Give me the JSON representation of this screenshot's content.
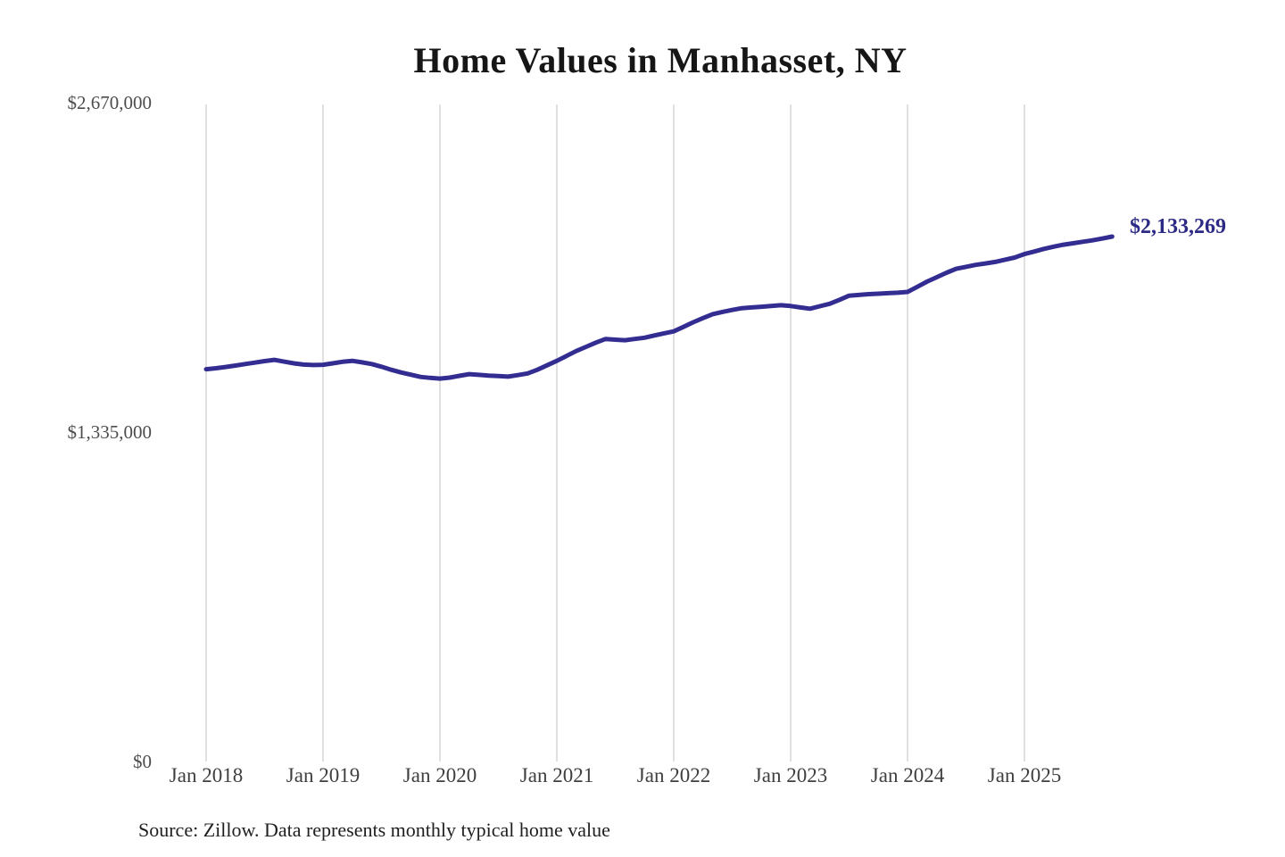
{
  "chart": {
    "title": "Home Values in Manhasset, NY",
    "end_label": "$2,133,269",
    "source": "Source: Zillow. Data represents monthly typical home value",
    "y_ticks": [
      {
        "label": "$2,670,000",
        "value": 2670000
      },
      {
        "label": "$1,335,000",
        "value": 1335000
      },
      {
        "label": "$0",
        "value": 0
      }
    ]
  },
  "chart_data": {
    "type": "line",
    "title": "Home Values in Manhasset, NY",
    "series_name": "Monthly typical home value (Zillow)",
    "frequency": "monthly",
    "x_start": "Jan 2018",
    "x_end": "Oct 2025",
    "ylim": [
      0,
      2670000
    ],
    "grid": "vertical-only",
    "legend": "none",
    "line_color": "#342d91",
    "grid_color": "#cccccc",
    "last_value": 2133269,
    "last_value_label": "$2,133,269",
    "x_ticks": [
      {
        "label": "Jan 2018",
        "month": 0
      },
      {
        "label": "Jan 2019",
        "month": 12
      },
      {
        "label": "Jan 2020",
        "month": 24
      },
      {
        "label": "Jan 2021",
        "month": 36
      },
      {
        "label": "Jan 2022",
        "month": 48
      },
      {
        "label": "Jan 2023",
        "month": 60
      },
      {
        "label": "Jan 2024",
        "month": 72
      },
      {
        "label": "Jan 2025",
        "month": 84
      }
    ],
    "values": [
      1594000,
      1598000,
      1603000,
      1609000,
      1615000,
      1621000,
      1627000,
      1632000,
      1625000,
      1618000,
      1613000,
      1611000,
      1612000,
      1618000,
      1624000,
      1628000,
      1622000,
      1615000,
      1604000,
      1592000,
      1581000,
      1572000,
      1563000,
      1559000,
      1556000,
      1560000,
      1567000,
      1574000,
      1571000,
      1568000,
      1566000,
      1564000,
      1570000,
      1577000,
      1592000,
      1610000,
      1628000,
      1648000,
      1668000,
      1685000,
      1702000,
      1717000,
      1714000,
      1712000,
      1717000,
      1722000,
      1731000,
      1740000,
      1748000,
      1766000,
      1785000,
      1802000,
      1818000,
      1827000,
      1835000,
      1842000,
      1845000,
      1848000,
      1851000,
      1854000,
      1851000,
      1845000,
      1840000,
      1850000,
      1860000,
      1876000,
      1893000,
      1896000,
      1899000,
      1901000,
      1903000,
      1905000,
      1908000,
      1929000,
      1950000,
      1968000,
      1986000,
      2002000,
      2010000,
      2018000,
      2024000,
      2030000,
      2039000,
      2048000,
      2062000,
      2072000,
      2083000,
      2092000,
      2100000,
      2106000,
      2112000,
      2118000,
      2125000,
      2133269
    ]
  }
}
